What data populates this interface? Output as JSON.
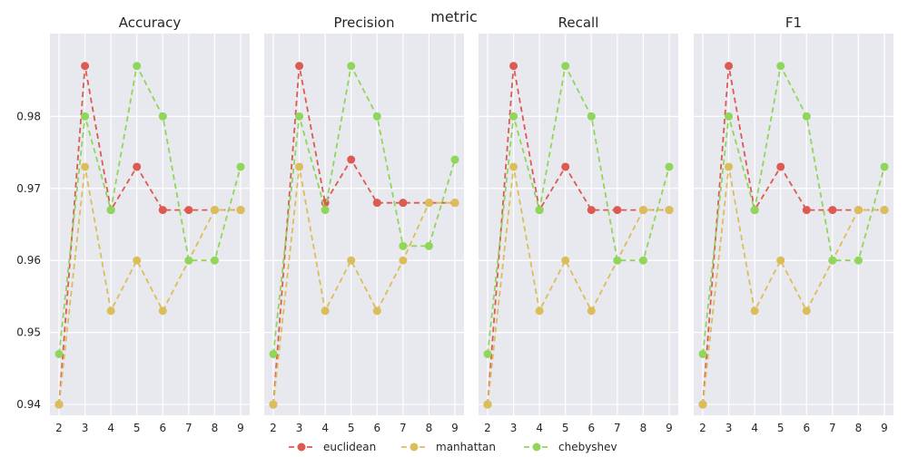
{
  "chart_data": {
    "type": "line",
    "suptitle": "metric",
    "x": [
      2,
      3,
      4,
      5,
      6,
      7,
      8,
      9
    ],
    "xticks": [
      "2",
      "3",
      "4",
      "5",
      "6",
      "7",
      "8",
      "9"
    ],
    "ylim": [
      0.9385,
      0.9915
    ],
    "yticks": [
      "0.94",
      "0.95",
      "0.96",
      "0.97",
      "0.98"
    ],
    "ytick_values": [
      0.94,
      0.95,
      0.96,
      0.97,
      0.98
    ],
    "grid": true,
    "legend_position": "bottom-center",
    "background": "#e8e8ef",
    "series_styles": [
      {
        "name": "euclidean",
        "color": "#dd5a52"
      },
      {
        "name": "manhattan",
        "color": "#dbbe5a"
      },
      {
        "name": "chebyshev",
        "color": "#8fd65a"
      }
    ],
    "panels": [
      {
        "title": "Accuracy",
        "series": [
          {
            "name": "euclidean",
            "values": [
              0.94,
              0.987,
              0.967,
              0.973,
              0.967,
              0.967,
              0.967,
              0.967
            ]
          },
          {
            "name": "manhattan",
            "values": [
              0.94,
              0.973,
              0.953,
              0.96,
              0.953,
              0.96,
              0.967,
              0.967
            ]
          },
          {
            "name": "chebyshev",
            "values": [
              0.947,
              0.98,
              0.967,
              0.987,
              0.98,
              0.96,
              0.96,
              0.973
            ]
          }
        ]
      },
      {
        "title": "Precision",
        "series": [
          {
            "name": "euclidean",
            "values": [
              0.94,
              0.987,
              0.968,
              0.974,
              0.968,
              0.968,
              0.968,
              0.968
            ]
          },
          {
            "name": "manhattan",
            "values": [
              0.94,
              0.973,
              0.953,
              0.96,
              0.953,
              0.96,
              0.968,
              0.968
            ]
          },
          {
            "name": "chebyshev",
            "values": [
              0.947,
              0.98,
              0.967,
              0.987,
              0.98,
              0.962,
              0.962,
              0.974
            ]
          }
        ]
      },
      {
        "title": "Recall",
        "series": [
          {
            "name": "euclidean",
            "values": [
              0.94,
              0.987,
              0.967,
              0.973,
              0.967,
              0.967,
              0.967,
              0.967
            ]
          },
          {
            "name": "manhattan",
            "values": [
              0.94,
              0.973,
              0.953,
              0.96,
              0.953,
              0.96,
              0.967,
              0.967
            ]
          },
          {
            "name": "chebyshev",
            "values": [
              0.947,
              0.98,
              0.967,
              0.987,
              0.98,
              0.96,
              0.96,
              0.973
            ]
          }
        ]
      },
      {
        "title": "F1",
        "series": [
          {
            "name": "euclidean",
            "values": [
              0.94,
              0.987,
              0.967,
              0.973,
              0.967,
              0.967,
              0.967,
              0.967
            ]
          },
          {
            "name": "manhattan",
            "values": [
              0.94,
              0.973,
              0.953,
              0.96,
              0.953,
              0.96,
              0.967,
              0.967
            ]
          },
          {
            "name": "chebyshev",
            "values": [
              0.947,
              0.98,
              0.967,
              0.987,
              0.98,
              0.96,
              0.96,
              0.973
            ]
          }
        ]
      }
    ],
    "legend": [
      "euclidean",
      "manhattan",
      "chebyshev"
    ]
  }
}
